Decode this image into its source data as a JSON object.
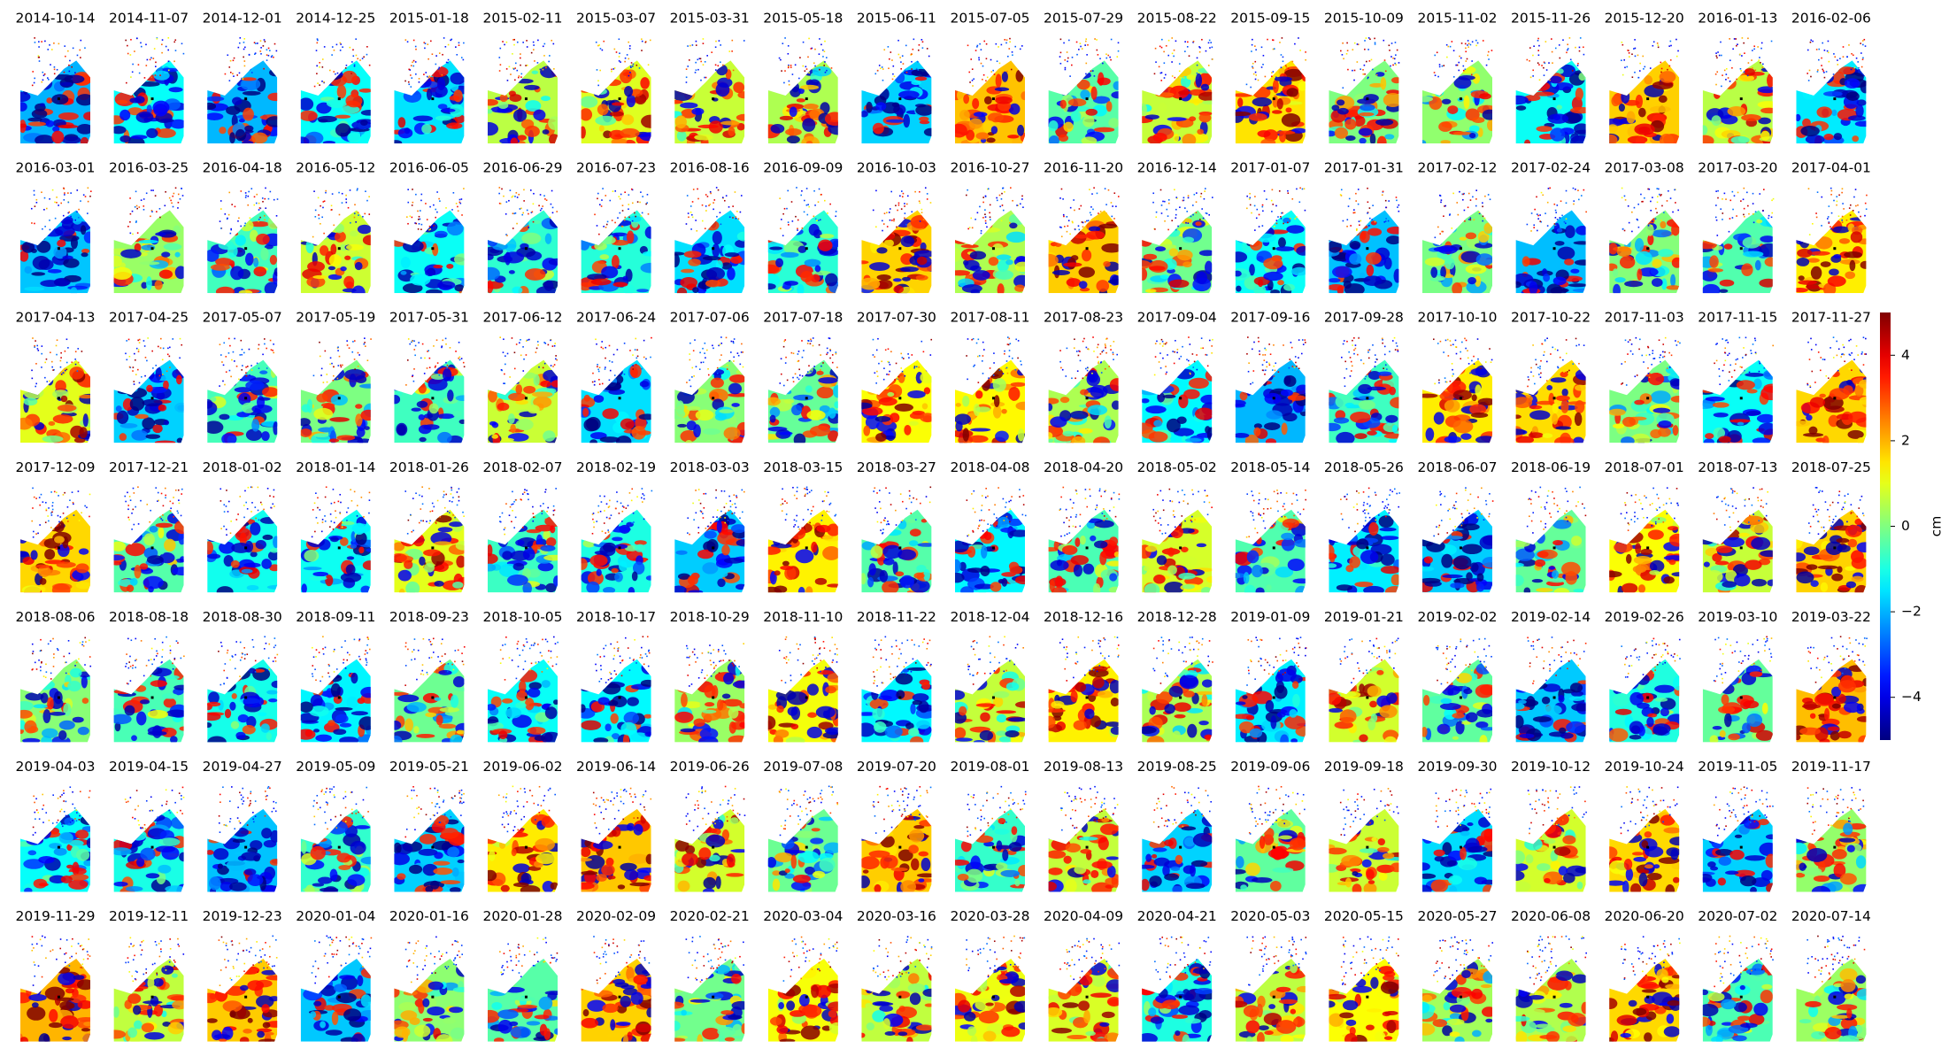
{
  "chart_data": {
    "type": "image-grid",
    "panels": [
      "2014-10-14",
      "2014-11-07",
      "2014-12-01",
      "2014-12-25",
      "2015-01-18",
      "2015-02-11",
      "2015-03-07",
      "2015-03-31",
      "2015-05-18",
      "2015-06-11",
      "2015-07-05",
      "2015-07-29",
      "2015-08-22",
      "2015-09-15",
      "2015-10-09",
      "2015-11-02",
      "2015-11-26",
      "2015-12-20",
      "2016-01-13",
      "2016-02-06",
      "2016-03-01",
      "2016-03-25",
      "2016-04-18",
      "2016-05-12",
      "2016-06-05",
      "2016-06-29",
      "2016-07-23",
      "2016-08-16",
      "2016-09-09",
      "2016-10-03",
      "2016-10-27",
      "2016-11-20",
      "2016-12-14",
      "2017-01-07",
      "2017-01-31",
      "2017-02-12",
      "2017-02-24",
      "2017-03-08",
      "2017-03-20",
      "2017-04-01",
      "2017-04-13",
      "2017-04-25",
      "2017-05-07",
      "2017-05-19",
      "2017-05-31",
      "2017-06-12",
      "2017-06-24",
      "2017-07-06",
      "2017-07-18",
      "2017-07-30",
      "2017-08-11",
      "2017-08-23",
      "2017-09-04",
      "2017-09-16",
      "2017-09-28",
      "2017-10-10",
      "2017-10-22",
      "2017-11-03",
      "2017-11-15",
      "2017-11-27",
      "2017-12-09",
      "2017-12-21",
      "2018-01-02",
      "2018-01-14",
      "2018-01-26",
      "2018-02-07",
      "2018-02-19",
      "2018-03-03",
      "2018-03-15",
      "2018-03-27",
      "2018-04-08",
      "2018-04-20",
      "2018-05-02",
      "2018-05-14",
      "2018-05-26",
      "2018-06-07",
      "2018-06-19",
      "2018-07-01",
      "2018-07-13",
      "2018-07-25",
      "2018-08-06",
      "2018-08-18",
      "2018-08-30",
      "2018-09-11",
      "2018-09-23",
      "2018-10-05",
      "2018-10-17",
      "2018-10-29",
      "2018-11-10",
      "2018-11-22",
      "2018-12-04",
      "2018-12-16",
      "2018-12-28",
      "2019-01-09",
      "2019-01-21",
      "2019-02-02",
      "2019-02-14",
      "2019-02-26",
      "2019-03-10",
      "2019-03-22",
      "2019-04-03",
      "2019-04-15",
      "2019-04-27",
      "2019-05-09",
      "2019-05-21",
      "2019-06-02",
      "2019-06-14",
      "2019-06-26",
      "2019-07-08",
      "2019-07-20",
      "2019-08-01",
      "2019-08-13",
      "2019-08-25",
      "2019-09-06",
      "2019-09-18",
      "2019-09-30",
      "2019-10-12",
      "2019-10-24",
      "2019-11-05",
      "2019-11-17",
      "2019-11-29",
      "2019-12-11",
      "2019-12-23",
      "2020-01-04",
      "2020-01-16",
      "2020-01-28",
      "2020-02-09",
      "2020-02-21",
      "2020-03-04",
      "2020-03-16",
      "2020-03-28",
      "2020-04-09",
      "2020-04-21",
      "2020-05-03",
      "2020-05-15",
      "2020-05-27",
      "2020-06-08",
      "2020-06-20",
      "2020-07-02",
      "2020-07-14"
    ],
    "colorbar": {
      "label": "cm",
      "colormap": "jet",
      "ylim": [
        -5,
        5
      ],
      "yticks": [
        {
          "value": -4,
          "label": "−4"
        },
        {
          "value": -2,
          "label": "−2"
        },
        0,
        2,
        4
      ]
    }
  }
}
